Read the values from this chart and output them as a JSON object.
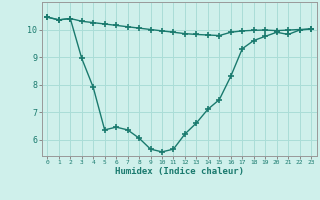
{
  "line1_x": [
    0,
    1,
    2,
    3,
    4,
    5,
    6,
    7,
    8,
    9,
    10,
    11,
    12,
    13,
    14,
    15,
    16,
    17,
    18,
    19,
    20,
    21,
    22,
    23
  ],
  "line1_y": [
    10.45,
    10.35,
    10.4,
    10.3,
    10.25,
    10.2,
    10.15,
    10.1,
    10.05,
    10.0,
    9.95,
    9.9,
    9.85,
    9.82,
    9.8,
    9.78,
    9.9,
    9.95,
    9.97,
    9.98,
    9.96,
    9.98,
    10.0,
    10.02
  ],
  "line2_x": [
    0,
    1,
    2,
    3,
    4,
    5,
    6,
    7,
    8,
    9,
    10,
    11,
    12,
    13,
    14,
    15,
    16,
    17,
    18,
    19,
    20,
    21,
    22,
    23
  ],
  "line2_y": [
    10.45,
    10.35,
    10.4,
    8.95,
    7.9,
    6.35,
    6.45,
    6.35,
    6.05,
    5.65,
    5.55,
    5.65,
    6.2,
    6.6,
    7.1,
    7.45,
    8.3,
    9.3,
    9.6,
    9.75,
    9.9,
    9.82,
    9.98,
    10.02
  ],
  "line_color": "#1a7a6e",
  "bg_color": "#cff0eb",
  "grid_color": "#aaddd7",
  "xlabel": "Humidex (Indice chaleur)",
  "ylim": [
    5.4,
    11.0
  ],
  "xlim": [
    -0.5,
    23.5
  ],
  "yticks": [
    6,
    7,
    8,
    9,
    10
  ],
  "xticks": [
    0,
    1,
    2,
    3,
    4,
    5,
    6,
    7,
    8,
    9,
    10,
    11,
    12,
    13,
    14,
    15,
    16,
    17,
    18,
    19,
    20,
    21,
    22,
    23
  ],
  "marker": "+",
  "markersize": 4,
  "linewidth": 1.0
}
